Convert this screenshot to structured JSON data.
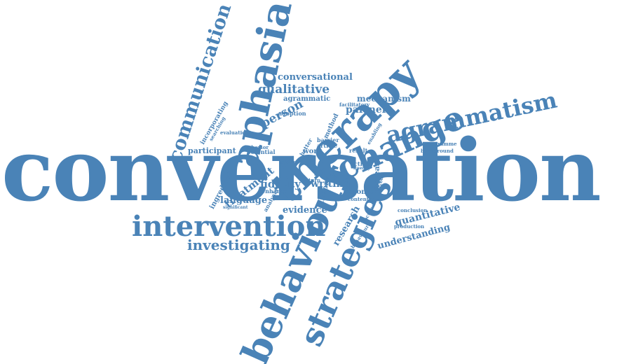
{
  "theme": {
    "word_color": "#4a83b7",
    "background": "#ffffff"
  },
  "words": {
    "conversation": "conversation",
    "intervention": "intervention",
    "behaviour": "behaviour",
    "strategies": "strategies",
    "therapy": "therapy",
    "aphasia": "aphasia",
    "change": "change",
    "agrammatism": "agrammatism",
    "communication": "communication",
    "investigating": "investigating",
    "conversational": "conversational",
    "qualitative": "qualitative",
    "agrammatic": "agrammatic",
    "person": "person",
    "mechanism": "mechanism",
    "partner": "partner",
    "facilitatory": "facilitatory",
    "adoption": "adoption",
    "incorporating": "incorporating",
    "searching": "searching",
    "evaluation": "evaluation",
    "participant": "participant",
    "behavior": "behavior",
    "potential": "potential",
    "method": "method",
    "barrier": "barrier",
    "better": "better",
    "article": "article",
    "work": "work",
    "result": "result",
    "enabling": "enabling",
    "programme": "programme",
    "background": "background",
    "increase": "increase",
    "active": "active",
    "fluency": "fluency",
    "account": "account",
    "taking": "taking",
    "study": "study",
    "turn": "turn",
    "theory": "theory",
    "fidelity": "fidelity",
    "writing": "writing",
    "treatment": "treatment",
    "enhance": "enhance",
    "ingredient": "ingredient",
    "language": "language",
    "significant": "significant",
    "analysis": "analysis",
    "evidence": "evidence",
    "chronic": "chronic",
    "content": "content",
    "research": "research",
    "focused": "focused",
    "behavioural": "behavioural",
    "quantitative": "quantitative",
    "conclusion": "conclusion",
    "production": "production",
    "understanding": "understanding"
  }
}
